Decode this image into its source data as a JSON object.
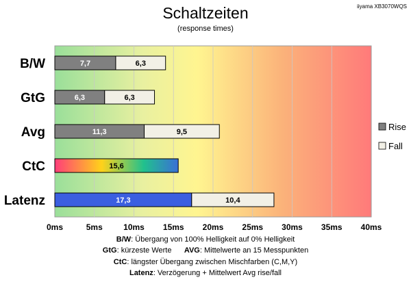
{
  "header": {
    "title": "Schaltzeiten",
    "subtitle": "(response times)",
    "model": "iiyama XB3070WQS"
  },
  "chart_data": {
    "type": "bar",
    "orientation": "horizontal",
    "stacked": true,
    "categories": [
      "B/W",
      "GtG",
      "Avg",
      "CtC",
      "Latenz"
    ],
    "series": [
      {
        "name": "Rise",
        "values": [
          7.7,
          6.3,
          11.3,
          null,
          null
        ]
      },
      {
        "name": "Fall",
        "values": [
          6.3,
          6.3,
          9.5,
          null,
          10.4
        ]
      },
      {
        "name": "",
        "values": [
          null,
          null,
          null,
          15.6,
          17.3
        ]
      }
    ],
    "value_labels": [
      [
        "7,7",
        "6,3"
      ],
      [
        "6,3",
        "6,3"
      ],
      [
        "11,3",
        "9,5"
      ],
      [
        "15,6"
      ],
      [
        "17,3",
        "10,4"
      ]
    ],
    "xlim": [
      0,
      40
    ],
    "xticks": [
      0,
      5,
      10,
      15,
      20,
      25,
      30,
      35,
      40
    ],
    "xtick_labels": [
      "0ms",
      "5ms",
      "10ms",
      "15ms",
      "20ms",
      "25ms",
      "30ms",
      "35ms",
      "40ms"
    ],
    "grid": "vertical",
    "legend": {
      "position": "right",
      "entries": [
        "Rise",
        "Fall"
      ]
    },
    "background": "gradient green-yellow-red",
    "colors": {
      "rise": "#808080",
      "fall": "#f2f0e6",
      "latenz": "#3b5fe0",
      "ctc_gradient": [
        "#ff3d7a",
        "#ffd21a",
        "#21c18d",
        "#3a6fd6"
      ],
      "bg_gradient": [
        "#9adf9a",
        "#e9f0a0",
        "#fff590",
        "#fbb27a",
        "#ff7a7a"
      ]
    }
  },
  "footnotes": [
    {
      "key": "B/W",
      "text": ":  Übergang von 100% Helligkeit auf 0% Helligkeit"
    },
    {
      "key": "GtG",
      "text": ": kürzeste  Werte",
      "key2": "AVG",
      "text2": ": Mittelwerte  an 15 Messpunkten"
    },
    {
      "key": "CtC",
      "text": ": längster Übergang  zwischen Mischfarben  (C,M,Y)"
    },
    {
      "key": "Latenz",
      "text": ": Verzögerung  + Mittelwert  Avg rise/fall"
    }
  ]
}
